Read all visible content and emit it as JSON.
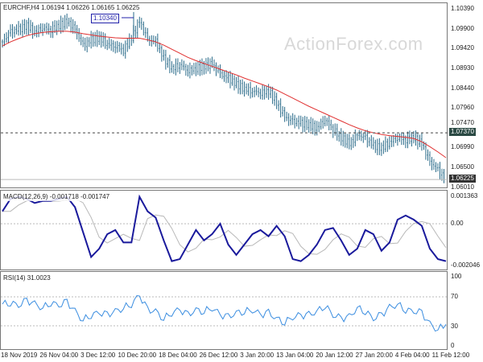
{
  "chart_data": [
    {
      "type": "candlestick",
      "title": "EURCHF,H4 1.06194 1.06226 1.06165 1.06225",
      "symbol": "EURCHF,H4",
      "ohlc": [
        "1.06194",
        "1.06226",
        "1.06165",
        "1.06225"
      ],
      "y_ticks": [
        "1.10390",
        "1.09900",
        "1.09420",
        "1.08930",
        "1.08440",
        "1.07960",
        "1.07470",
        "1.06990",
        "1.06500",
        "1.06010"
      ],
      "ylim": [
        1.0601,
        1.1039
      ],
      "annotations": {
        "high_label": "1.10340",
        "horizontal_line": "1.07370",
        "current_price": "1.06225"
      },
      "watermark": "ActionForex.com",
      "close": [
        1.096,
        1.0985,
        1.099,
        1.1,
        1.0985,
        1.0995,
        1.099,
        1.1,
        1.101,
        1.099,
        1.095,
        1.0965,
        1.097,
        1.0955,
        1.095,
        1.094,
        1.097,
        1.101,
        1.0965,
        1.096,
        1.092,
        1.0895,
        1.0905,
        1.089,
        1.0895,
        1.09,
        1.0905,
        1.088,
        1.087,
        1.0855,
        1.0845,
        1.084,
        1.0835,
        1.084,
        1.081,
        1.0775,
        1.0765,
        1.076,
        1.0755,
        1.075,
        1.077,
        1.0745,
        1.0725,
        1.071,
        1.073,
        1.0725,
        1.0705,
        1.07,
        1.0715,
        1.0725,
        1.072,
        1.0725,
        1.071,
        1.0665,
        1.0645,
        1.0622
      ],
      "moving_average": [
        1.095,
        1.096,
        1.0968,
        1.0975,
        1.098,
        1.0983,
        1.0985,
        1.0986,
        1.0986,
        1.0984,
        1.098,
        1.0977,
        1.0974,
        1.0972,
        1.097,
        1.0969,
        1.0969,
        1.0969,
        1.0965,
        1.096,
        1.0952,
        1.0942,
        1.0932,
        1.0922,
        1.0914,
        1.0907,
        1.09,
        1.0893,
        1.0886,
        1.0879,
        1.0871,
        1.0864,
        1.0857,
        1.085,
        1.0842,
        1.0832,
        1.0822,
        1.0812,
        1.0802,
        1.0793,
        1.0784,
        1.0775,
        1.0766,
        1.0757,
        1.0749,
        1.0742,
        1.0737,
        1.0733,
        1.073,
        1.0728,
        1.0726,
        1.0723,
        1.0715,
        1.0703,
        1.069,
        1.0676
      ]
    },
    {
      "type": "line",
      "title": "MACD(12,26,9) -0.001718 -0.001747",
      "y_ticks": [
        "0.001363",
        "0.00",
        "-0.002046"
      ],
      "ylim": [
        -0.002046,
        0.001363
      ],
      "macd": [
        0.0006,
        0.0012,
        0.0013,
        0.0012,
        0.001,
        0.0011,
        0.0011,
        0.0012,
        0.0013,
        0.0008,
        -0.0004,
        -0.0016,
        -0.0012,
        -0.0005,
        -0.0003,
        -0.0009,
        -0.0009,
        0.0013,
        0.0006,
        0.0003,
        -0.0008,
        -0.0018,
        -0.0017,
        -0.001,
        -0.0003,
        -0.0008,
        -0.0005,
        0.0,
        -0.001,
        -0.0015,
        -0.001,
        -0.0005,
        -0.0003,
        -0.0006,
        -0.0001,
        -0.0006,
        -0.0017,
        -0.0018,
        -0.0015,
        -0.001,
        -0.0003,
        -0.0002,
        -0.0008,
        -0.0015,
        -0.0012,
        -0.0003,
        -0.0005,
        -0.0013,
        -0.0009,
        0.0002,
        0.0004,
        0.0002,
        -0.0001,
        -0.0012,
        -0.0017,
        -0.0018
      ]
    },
    {
      "type": "line",
      "title": "RSI(14) 31.0023",
      "y_ticks": [
        "100",
        "70",
        "30",
        "0"
      ],
      "ylim": [
        0,
        100
      ],
      "rsi": [
        60,
        62,
        58,
        65,
        60,
        55,
        62,
        58,
        63,
        50,
        38,
        45,
        48,
        45,
        50,
        55,
        60,
        72,
        52,
        50,
        40,
        48,
        52,
        45,
        52,
        50,
        55,
        45,
        42,
        48,
        50,
        52,
        45,
        48,
        40,
        35,
        42,
        44,
        45,
        50,
        58,
        45,
        40,
        42,
        55,
        50,
        40,
        45,
        55,
        60,
        52,
        50,
        48,
        32,
        25,
        32
      ]
    }
  ],
  "x_axis": [
    "18 Nov 2019",
    "26 Nov 04:00",
    "3 Dec 12:00",
    "10 Dec 20:00",
    "18 Dec 04:00",
    "26 Dec 12:00",
    "3 Jan 20:00",
    "13 Jan 04:00",
    "20 Jan 12:00",
    "27 Jan 20:00",
    "4 Feb 04:00",
    "11 Feb 12:00"
  ],
  "colors": {
    "price": "#2a6b8a",
    "ma": "#e03030",
    "macd": "#1a1a9c",
    "signal": "#b8b8b8",
    "rsi": "#3a8de0"
  }
}
